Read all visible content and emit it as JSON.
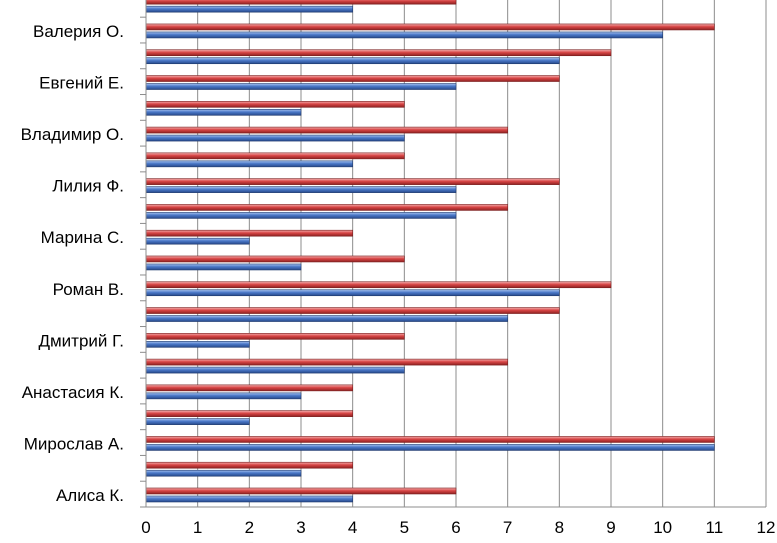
{
  "chart_data": {
    "type": "bar",
    "orientation": "horizontal",
    "categories": [
      "Алиса К.",
      "",
      "Мирослав А.",
      "",
      "Анастасия К.",
      "",
      "Дмитрий Г.",
      "",
      "Роман В.",
      "",
      "Марина С.",
      "",
      "Лилия Ф.",
      "",
      "Владимир О.",
      "",
      "Евгений Е.",
      "",
      "Валерия О.",
      ""
    ],
    "series": [
      {
        "values": [
          4,
          3,
          11,
          2,
          3,
          5,
          2,
          7,
          8,
          3,
          2,
          6,
          6,
          4,
          5,
          3,
          6,
          8,
          10,
          4
        ]
      },
      {
        "values": [
          6,
          4,
          11,
          4,
          4,
          7,
          5,
          8,
          9,
          5,
          4,
          7,
          8,
          5,
          7,
          5,
          8,
          9,
          11,
          6
        ]
      }
    ],
    "colors": {
      "series1": "#4a78c8",
      "series2": "#d84545"
    },
    "x_ticks": [
      "0",
      "1",
      "2",
      "3",
      "4",
      "5",
      "6",
      "7",
      "8",
      "9",
      "10",
      "11",
      "12"
    ],
    "xlim": [
      0,
      12
    ],
    "grid": true,
    "title": "",
    "xlabel": "",
    "ylabel": ""
  }
}
